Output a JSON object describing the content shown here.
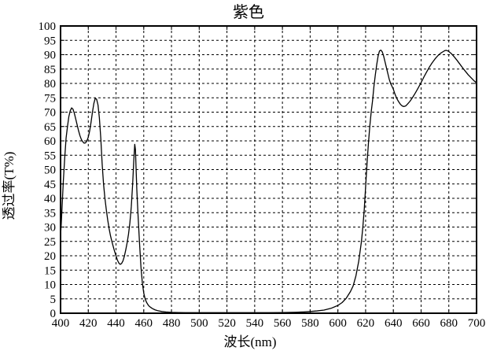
{
  "chart_data": {
    "type": "line",
    "title": "紫色",
    "xlabel": "波长(nm)",
    "ylabel": "透过率(T%)",
    "xlim": [
      400,
      700
    ],
    "ylim": [
      0,
      100
    ],
    "x_ticks": [
      400,
      420,
      440,
      460,
      480,
      500,
      520,
      540,
      560,
      580,
      600,
      620,
      640,
      660,
      680,
      700
    ],
    "y_ticks": [
      0,
      5,
      10,
      15,
      20,
      25,
      30,
      35,
      40,
      45,
      50,
      55,
      60,
      65,
      70,
      75,
      80,
      85,
      90,
      95,
      100
    ],
    "grid": "dashed",
    "legend": "none",
    "line_color": "#000000",
    "grid_color": "#000000",
    "border_color": "#000000",
    "background_color": "#ffffff",
    "series": [
      {
        "name": "透过率",
        "points": [
          [
            400,
            27
          ],
          [
            400.5,
            31
          ],
          [
            401,
            36
          ],
          [
            402,
            46
          ],
          [
            403,
            54
          ],
          [
            404,
            61
          ],
          [
            405,
            65
          ],
          [
            406,
            68.5
          ],
          [
            407,
            70.5
          ],
          [
            408,
            71.5
          ],
          [
            409,
            71
          ],
          [
            410,
            69.5
          ],
          [
            411,
            67.5
          ],
          [
            412,
            65.5
          ],
          [
            413,
            63.5
          ],
          [
            414,
            61.8
          ],
          [
            415,
            60.5
          ],
          [
            416,
            59.7
          ],
          [
            417,
            59.2
          ],
          [
            418,
            59.3
          ],
          [
            419,
            60
          ],
          [
            420,
            61.3
          ],
          [
            421,
            63.5
          ],
          [
            422,
            66.5
          ],
          [
            423,
            70
          ],
          [
            424,
            73
          ],
          [
            425,
            74.8
          ],
          [
            426,
            74.5
          ],
          [
            427,
            72.5
          ],
          [
            428,
            68
          ],
          [
            429,
            61
          ],
          [
            430,
            52
          ],
          [
            431,
            45
          ],
          [
            432,
            40
          ],
          [
            433,
            36
          ],
          [
            434,
            32.5
          ],
          [
            435,
            29.5
          ],
          [
            436,
            27
          ],
          [
            437,
            25
          ],
          [
            438,
            23.2
          ],
          [
            439,
            21.5
          ],
          [
            440,
            20
          ],
          [
            441,
            18.5
          ],
          [
            442,
            17.5
          ],
          [
            443,
            17
          ],
          [
            444,
            17.3
          ],
          [
            445,
            18.2
          ],
          [
            446,
            19.8
          ],
          [
            447,
            22
          ],
          [
            448,
            24.5
          ],
          [
            449,
            27.5
          ],
          [
            450,
            31.5
          ],
          [
            451,
            37
          ],
          [
            452,
            45
          ],
          [
            452.8,
            53
          ],
          [
            453.5,
            58.8
          ],
          [
            454,
            57
          ],
          [
            454.5,
            50
          ],
          [
            455,
            43
          ],
          [
            456,
            33
          ],
          [
            457,
            24
          ],
          [
            458,
            16
          ],
          [
            459,
            10.5
          ],
          [
            460,
            7
          ],
          [
            461,
            5
          ],
          [
            462,
            3.8
          ],
          [
            463,
            3
          ],
          [
            464,
            2.4
          ],
          [
            466,
            1.7
          ],
          [
            468,
            1.2
          ],
          [
            470,
            0.9
          ],
          [
            473,
            0.6
          ],
          [
            476,
            0.45
          ],
          [
            480,
            0.3
          ],
          [
            485,
            0.25
          ],
          [
            490,
            0.2
          ],
          [
            500,
            0.2
          ],
          [
            510,
            0.2
          ],
          [
            520,
            0.2
          ],
          [
            530,
            0.2
          ],
          [
            540,
            0.2
          ],
          [
            550,
            0.2
          ],
          [
            560,
            0.25
          ],
          [
            570,
            0.35
          ],
          [
            575,
            0.45
          ],
          [
            580,
            0.6
          ],
          [
            585,
            0.8
          ],
          [
            590,
            1.1
          ],
          [
            595,
            1.7
          ],
          [
            600,
            2.7
          ],
          [
            603,
            3.7
          ],
          [
            606,
            5.2
          ],
          [
            609,
            7.5
          ],
          [
            611,
            9.5
          ],
          [
            613,
            13
          ],
          [
            615,
            18
          ],
          [
            617,
            25
          ],
          [
            618,
            30
          ],
          [
            619,
            36
          ],
          [
            620,
            44
          ],
          [
            621,
            52
          ],
          [
            622,
            59
          ],
          [
            623,
            65
          ],
          [
            624,
            70
          ],
          [
            625,
            74
          ],
          [
            626,
            79
          ],
          [
            627,
            83
          ],
          [
            628,
            86.5
          ],
          [
            629,
            89.5
          ],
          [
            630,
            91.3
          ],
          [
            631,
            91.6
          ],
          [
            632,
            91
          ],
          [
            633,
            89.5
          ],
          [
            634,
            87.5
          ],
          [
            635,
            85.5
          ],
          [
            636,
            83.5
          ],
          [
            637,
            81.5
          ],
          [
            638,
            80
          ],
          [
            639,
            79
          ],
          [
            640,
            78
          ],
          [
            641,
            76.5
          ],
          [
            642,
            75.3
          ],
          [
            643,
            74.3
          ],
          [
            644,
            73.5
          ],
          [
            645,
            72.8
          ],
          [
            646,
            72.3
          ],
          [
            647,
            72
          ],
          [
            648,
            72
          ],
          [
            649,
            72.2
          ],
          [
            650,
            72.7
          ],
          [
            652,
            73.8
          ],
          [
            654,
            75.2
          ],
          [
            656,
            76.8
          ],
          [
            658,
            78.5
          ],
          [
            660,
            80.3
          ],
          [
            662,
            82.2
          ],
          [
            664,
            84
          ],
          [
            666,
            85.7
          ],
          [
            668,
            87.2
          ],
          [
            670,
            88.5
          ],
          [
            672,
            89.6
          ],
          [
            674,
            90.5
          ],
          [
            676,
            91.1
          ],
          [
            677,
            91.4
          ],
          [
            678,
            91.5
          ],
          [
            679,
            91.4
          ],
          [
            680,
            91.1
          ],
          [
            682,
            90.3
          ],
          [
            684,
            89.2
          ],
          [
            686,
            88
          ],
          [
            688,
            86.7
          ],
          [
            690,
            85.4
          ],
          [
            692,
            84.2
          ],
          [
            694,
            83
          ],
          [
            696,
            82
          ],
          [
            698,
            81
          ],
          [
            700,
            80.2
          ]
        ]
      }
    ]
  }
}
